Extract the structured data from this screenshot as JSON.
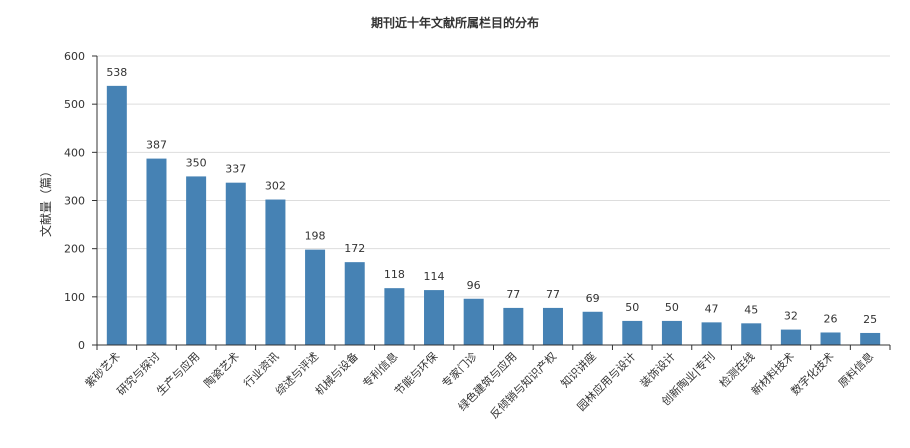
{
  "chart_data": {
    "type": "bar",
    "title": "期刊近十年文献所属栏目的分布",
    "xlabel": "",
    "ylabel": "文献量（篇）",
    "ylim": [
      0,
      600
    ],
    "yticks": [
      0,
      100,
      200,
      300,
      400,
      500,
      600
    ],
    "grid": true,
    "bar_color": "#4682b4",
    "categories": [
      "紫砂艺术",
      "研究与探讨",
      "生产与应用",
      "陶瓷艺术",
      "行业资讯",
      "综述与评述",
      "机械与设备",
      "专利信息",
      "节能与环保",
      "专家门诊",
      "绿色建筑与应用",
      "反倾销与知识产权",
      "知识讲座",
      "园林应用与设计",
      "装饰设计",
      "创新陶业|专刊",
      "检测在线",
      "新材料技术",
      "数字化技术",
      "原料信息"
    ],
    "values": [
      538,
      387,
      350,
      337,
      302,
      198,
      172,
      118,
      114,
      96,
      77,
      77,
      69,
      50,
      50,
      47,
      45,
      32,
      26,
      25
    ]
  }
}
